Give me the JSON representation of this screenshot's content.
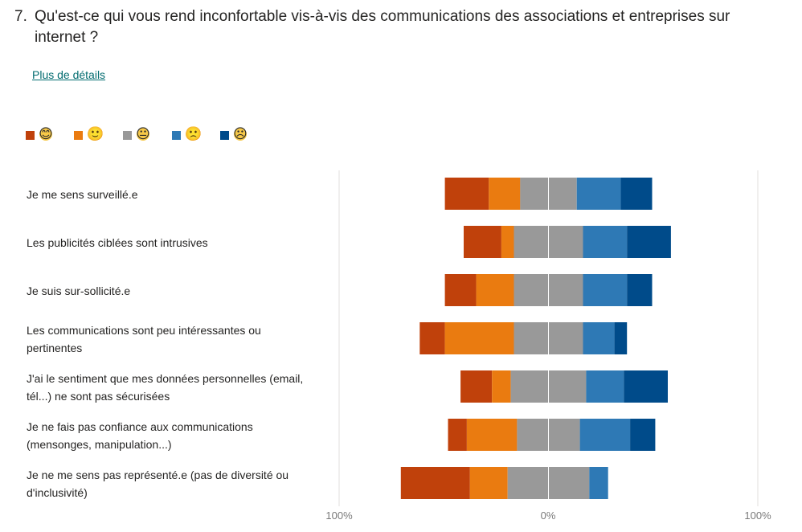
{
  "question": {
    "number": "7.",
    "text": "Qu'est-ce qui vous rend inconfortable vis-à-vis des communications des associations et entreprises sur internet ?"
  },
  "details_link": "Plus de détails",
  "legend": [
    {
      "face": "😊",
      "icon": "very-happy-face-icon",
      "color": "#c0410b"
    },
    {
      "face": "🙂",
      "icon": "happy-face-icon",
      "color": "#ea7b10"
    },
    {
      "face": "😐",
      "icon": "neutral-face-icon",
      "color": "#999999"
    },
    {
      "face": "🙁",
      "icon": "sad-face-icon",
      "color": "#2e79b5"
    },
    {
      "face": "☹",
      "icon": "very-sad-face-icon",
      "color": "#004b8a"
    }
  ],
  "axis_ticks": [
    "100%",
    "0%",
    "100%"
  ],
  "chart_data": {
    "type": "bar",
    "subtype": "diverging-stacked-horizontal",
    "xlim": [
      -100,
      100
    ],
    "x_unit": "%",
    "categories": [
      "Je me sens surveillé.e",
      "Les publicités ciblées sont intrusives",
      "Je suis sur-sollicité.e",
      "Les communications sont peu intéressantes ou pertinentes",
      "J'ai le sentiment que mes données personnelles (email, tél...) ne sont pas sécurisées",
      "Je ne fais pas confiance aux communications (mensonges, manipulation...)",
      "Je ne me sens pas représenté.e (pas de diversité ou d'inclusivité)"
    ],
    "series": [
      {
        "name": "😊",
        "side": "left",
        "values": [
          21,
          18,
          15,
          12,
          15,
          9,
          33
        ]
      },
      {
        "name": "🙂",
        "side": "left",
        "values": [
          15,
          6,
          18,
          33,
          9,
          24,
          18
        ]
      },
      {
        "name": "😐",
        "side": "split",
        "values": [
          27,
          33,
          33,
          33,
          36,
          30,
          39
        ]
      },
      {
        "name": "🙁",
        "side": "right",
        "values": [
          21,
          21,
          21,
          15,
          18,
          24,
          9
        ]
      },
      {
        "name": "☹",
        "side": "right",
        "values": [
          15,
          21,
          12,
          6,
          21,
          12,
          0
        ]
      }
    ]
  }
}
